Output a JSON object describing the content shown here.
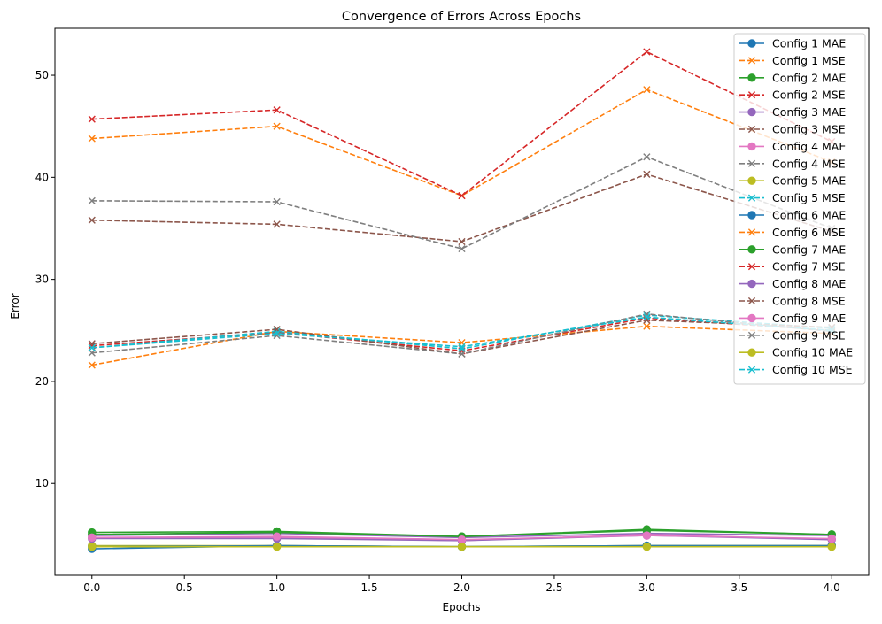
{
  "chart_data": {
    "type": "line",
    "title": "Convergence of Errors Across Epochs",
    "xlabel": "Epochs",
    "ylabel": "Error",
    "x": [
      0,
      1,
      2,
      3,
      4
    ],
    "xlim": [
      -0.2,
      4.2
    ],
    "ylim": [
      1.0,
      54.6
    ],
    "xticks": [
      "0.0",
      "0.5",
      "1.0",
      "1.5",
      "2.0",
      "2.5",
      "3.0",
      "3.5",
      "4.0"
    ],
    "xtick_values": [
      0,
      0.5,
      1,
      1.5,
      2,
      2.5,
      3,
      3.5,
      4
    ],
    "yticks": [
      "10",
      "20",
      "30",
      "40",
      "50"
    ],
    "ytick_values": [
      10,
      20,
      30,
      40,
      50
    ],
    "grid": false,
    "legend_position": "top-right",
    "series": [
      {
        "name": "Config 1 MAE",
        "values": [
          3.6,
          3.9,
          3.8,
          3.9,
          3.9
        ],
        "color": "#1f77b4",
        "marker": "circle",
        "dashed": false
      },
      {
        "name": "Config 1 MSE",
        "values": [
          21.6,
          24.9,
          23.8,
          25.4,
          24.7
        ],
        "color": "#ff7f0e",
        "marker": "x",
        "dashed": true
      },
      {
        "name": "Config 2 MAE",
        "values": [
          5.2,
          5.3,
          4.8,
          5.5,
          5.0
        ],
        "color": "#2ca02c",
        "marker": "circle",
        "dashed": false
      },
      {
        "name": "Config 2 MSE",
        "values": [
          23.5,
          24.8,
          23.0,
          26.2,
          25.0
        ],
        "color": "#d62728",
        "marker": "x",
        "dashed": true
      },
      {
        "name": "Config 3 MAE",
        "values": [
          4.9,
          5.1,
          4.7,
          5.1,
          4.9
        ],
        "color": "#9467bd",
        "marker": "circle",
        "dashed": false
      },
      {
        "name": "Config 3 MSE",
        "values": [
          35.8,
          35.4,
          33.7,
          40.3,
          34.7
        ],
        "color": "#8c564b",
        "marker": "x",
        "dashed": true
      },
      {
        "name": "Config 4 MAE",
        "values": [
          4.7,
          4.7,
          4.4,
          5.0,
          4.5
        ],
        "color": "#e377c2",
        "marker": "circle",
        "dashed": false
      },
      {
        "name": "Config 4 MSE",
        "values": [
          37.7,
          37.6,
          33.0,
          42.0,
          35.0
        ],
        "color": "#7f7f7f",
        "marker": "x",
        "dashed": true
      },
      {
        "name": "Config 5 MAE",
        "values": [
          3.9,
          3.9,
          3.8,
          3.9,
          3.9
        ],
        "color": "#bcbd22",
        "marker": "circle",
        "dashed": false
      },
      {
        "name": "Config 5 MSE",
        "values": [
          23.3,
          24.9,
          23.2,
          26.5,
          25.2
        ],
        "color": "#17becf",
        "marker": "x",
        "dashed": true
      },
      {
        "name": "Config 6 MAE",
        "values": [
          3.8,
          3.9,
          3.8,
          3.9,
          3.9
        ],
        "color": "#1f77b4",
        "marker": "circle",
        "dashed": false
      },
      {
        "name": "Config 6 MSE",
        "values": [
          43.8,
          45.0,
          38.2,
          48.6,
          41.5
        ],
        "color": "#ff7f0e",
        "marker": "x",
        "dashed": true
      },
      {
        "name": "Config 7 MAE",
        "values": [
          5.0,
          5.2,
          4.8,
          5.4,
          5.0
        ],
        "color": "#2ca02c",
        "marker": "circle",
        "dashed": false
      },
      {
        "name": "Config 7 MSE",
        "values": [
          45.7,
          46.6,
          38.2,
          52.3,
          43.5
        ],
        "color": "#d62728",
        "marker": "x",
        "dashed": true
      },
      {
        "name": "Config 8 MAE",
        "values": [
          4.6,
          4.6,
          4.4,
          4.9,
          4.5
        ],
        "color": "#9467bd",
        "marker": "circle",
        "dashed": false
      },
      {
        "name": "Config 8 MSE",
        "values": [
          23.7,
          25.1,
          22.7,
          26.0,
          25.3
        ],
        "color": "#8c564b",
        "marker": "x",
        "dashed": true
      },
      {
        "name": "Config 9 MAE",
        "values": [
          4.7,
          4.8,
          4.5,
          4.9,
          4.6
        ],
        "color": "#e377c2",
        "marker": "circle",
        "dashed": false
      },
      {
        "name": "Config 9 MSE",
        "values": [
          22.8,
          24.5,
          22.7,
          26.6,
          24.9
        ],
        "color": "#7f7f7f",
        "marker": "x",
        "dashed": true
      },
      {
        "name": "Config 10 MAE",
        "values": [
          3.8,
          3.8,
          3.8,
          3.8,
          3.8
        ],
        "color": "#bcbd22",
        "marker": "circle",
        "dashed": false
      },
      {
        "name": "Config 10 MSE",
        "values": [
          23.3,
          24.7,
          23.4,
          26.3,
          25.0
        ],
        "color": "#17becf",
        "marker": "x",
        "dashed": true
      }
    ]
  }
}
